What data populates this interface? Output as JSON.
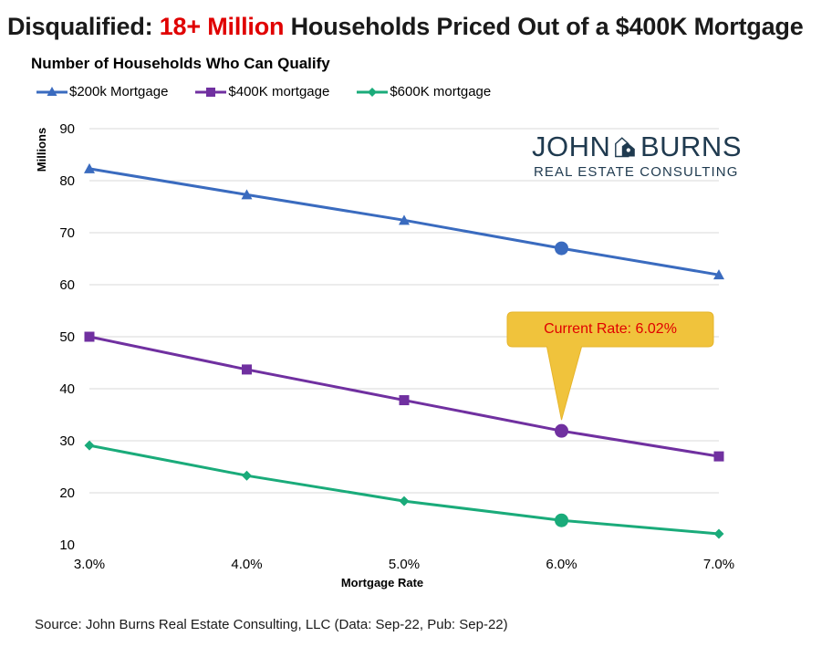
{
  "headline": {
    "part1": "Disqualified: ",
    "part2": "18+ Million",
    "part3": " Households Priced Out of a $400K Mortgage"
  },
  "colors": {
    "headline_accent": "#e00000",
    "series_200k": "#3a6bbf",
    "series_400k": "#7030a0",
    "series_600k": "#1aab7a",
    "callout_fill": "#f0c33c",
    "grid": "#d9d9d9"
  },
  "legend": {
    "placement": "top-left",
    "items": [
      {
        "label": "$200k Mortgage",
        "marker": "triangle"
      },
      {
        "label": "$400K mortgage",
        "marker": "square"
      },
      {
        "label": "$600K mortgage",
        "marker": "diamond"
      }
    ]
  },
  "logo": {
    "word1": "JOHN",
    "word2": "BURNS",
    "line2": "REAL ESTATE CONSULTING",
    "icon": "house-key-icon"
  },
  "callout": {
    "text": "Current Rate: 6.02%"
  },
  "source": "Source: John Burns Real Estate Consulting, LLC (Data: Sep-22, Pub: Sep-22)",
  "chart_data": {
    "type": "line",
    "title": "Number of Households Who Can Qualify",
    "xlabel": "Mortgage Rate",
    "ylabel": "Millions",
    "x": [
      3.0,
      4.0,
      5.0,
      6.0,
      7.0
    ],
    "x_tick_labels": [
      "3.0%",
      "4.0%",
      "5.0%",
      "6.0%",
      "7.0%"
    ],
    "ylim": [
      10,
      90
    ],
    "y_ticks": [
      10,
      20,
      30,
      40,
      50,
      60,
      70,
      80,
      90
    ],
    "grid": true,
    "highlight_x": 6.0,
    "series": [
      {
        "name": "$200k Mortgage",
        "marker": "triangle",
        "values": [
          82.3,
          77.3,
          72.4,
          67.0,
          61.9
        ]
      },
      {
        "name": "$400K mortgage",
        "marker": "square",
        "values": [
          50.0,
          43.7,
          37.8,
          31.9,
          27.0
        ]
      },
      {
        "name": "$600K mortgage",
        "marker": "diamond",
        "values": [
          29.1,
          23.3,
          18.4,
          14.7,
          12.1
        ]
      }
    ]
  }
}
